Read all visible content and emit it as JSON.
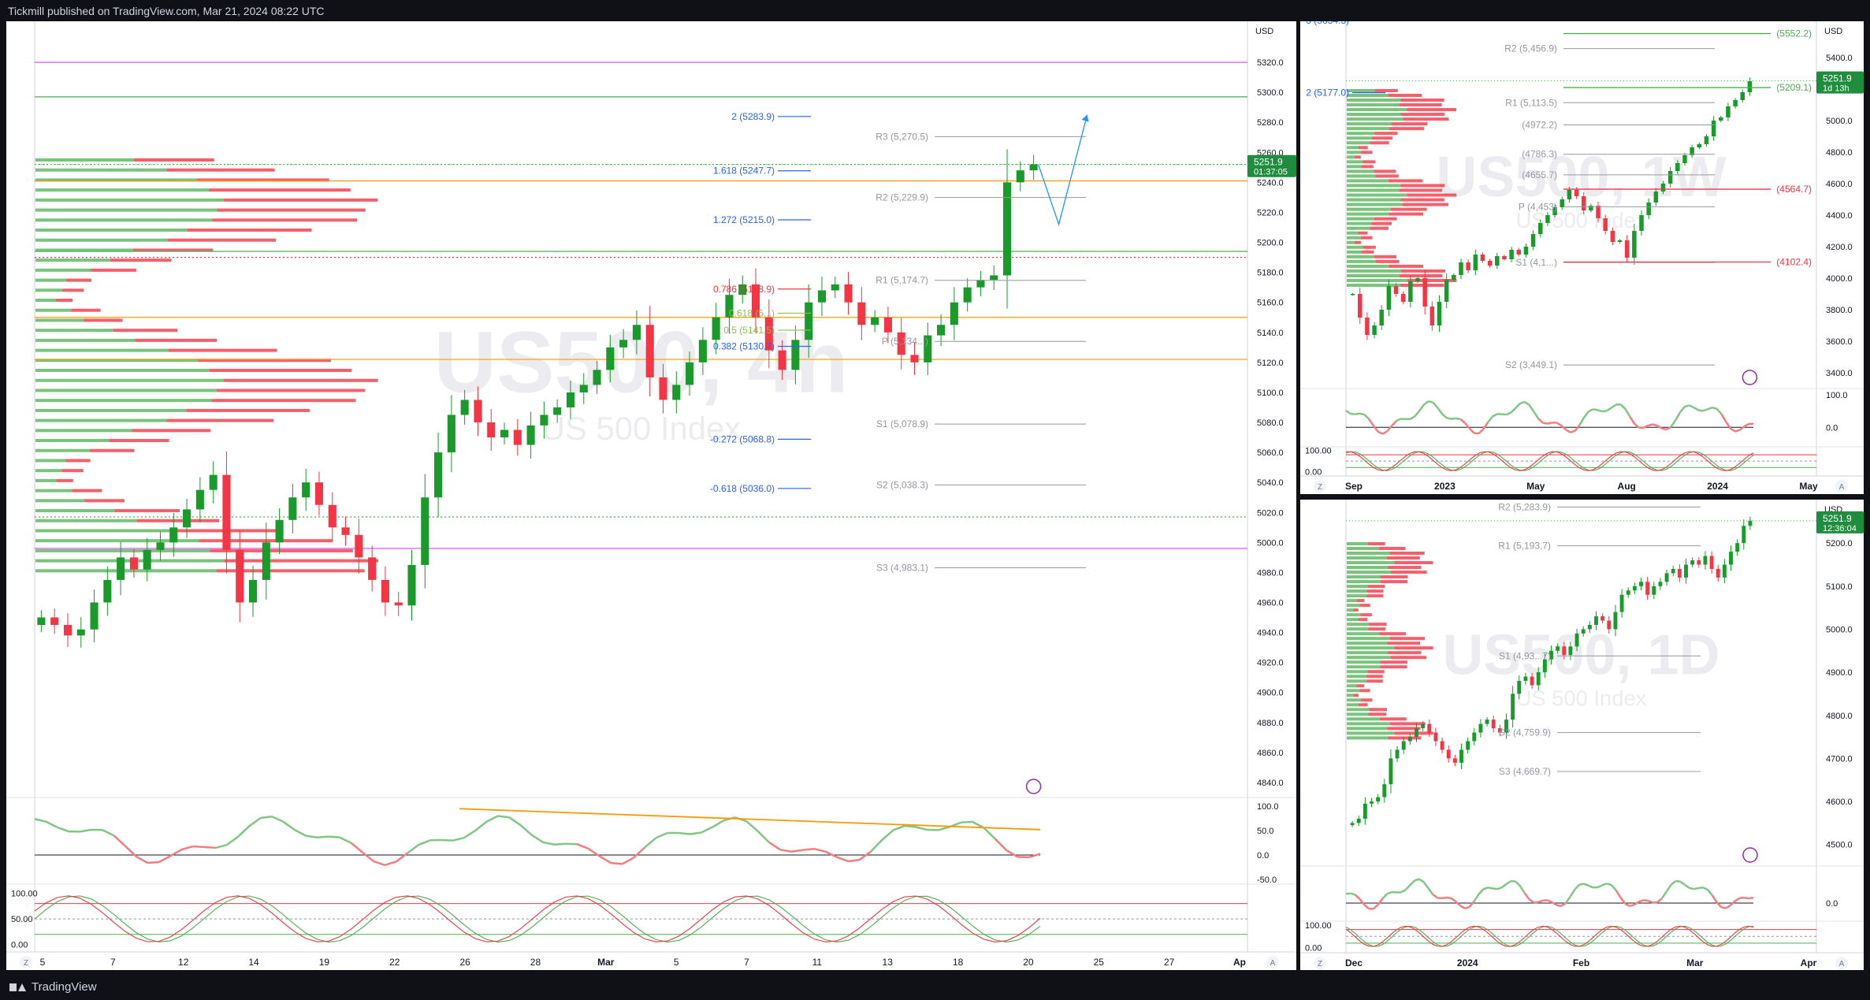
{
  "header": {
    "published": "Tickmill published on TradingView.com, Mar 21, 2024 08:22 UTC"
  },
  "footer": {
    "brand": "TradingView"
  },
  "colors": {
    "up": "#089981",
    "upBar": "#1a9a2a",
    "down": "#f23645",
    "fib": "#2962ff",
    "pivot": "#9598a1",
    "orange": "#ff9800",
    "magenta": "#e040fb",
    "green": "#4caf50",
    "red": "#f23645",
    "priceTag": "#1e8e3e"
  },
  "chart_data": [
    {
      "id": "main",
      "type": "line",
      "title": "",
      "watermark": {
        "symbol": "US500, 4h",
        "description": "US 500 Index"
      },
      "currency": "USD",
      "ylim": [
        4830,
        5340
      ],
      "y_ticks": [
        "5320.0",
        "5300.0",
        "5280.0",
        "5260.0",
        "5240.0",
        "5220.0",
        "5200.0",
        "5180.0",
        "5160.0",
        "5140.0",
        "5120.0",
        "5100.0",
        "5080.0",
        "5060.0",
        "5040.0",
        "5020.0",
        "5000.0",
        "4980.0",
        "4960.0",
        "4940.0",
        "4920.0",
        "4900.0",
        "4880.0",
        "4860.0",
        "4840.0"
      ],
      "x_ticks": [
        "5",
        "7",
        "12",
        "14",
        "19",
        "22",
        "26",
        "28",
        "Mar",
        "5",
        "7",
        "11",
        "13",
        "18",
        "20",
        "25",
        "27",
        "Ap"
      ],
      "last_price": "5251.9",
      "countdown": "01:37:05",
      "close_series": [
        4950,
        4945,
        4938,
        4942,
        4960,
        4975,
        4990,
        4982,
        4995,
        5000,
        5010,
        5022,
        5035,
        5045,
        4995,
        4960,
        4975,
        5000,
        5015,
        5030,
        5040,
        5025,
        5010,
        5005,
        4990,
        4975,
        4960,
        4958,
        4985,
        5030,
        5060,
        5085,
        5095,
        5080,
        5070,
        5075,
        5065,
        5078,
        5085,
        5090,
        5100,
        5105,
        5115,
        5130,
        5135,
        5145,
        5110,
        5095,
        5105,
        5120,
        5135,
        5150,
        5165,
        5172,
        5150,
        5128,
        5115,
        5135,
        5160,
        5168,
        5172,
        5160,
        5145,
        5150,
        5140,
        5125,
        5120,
        5138,
        5145,
        5160,
        5170,
        5175,
        5178,
        5240,
        5248,
        5252
      ],
      "fib_levels": [
        {
          "label": "2 (5283.9)",
          "value": 5283.9
        },
        {
          "label": "1.618 (5247.7)",
          "value": 5247.7
        },
        {
          "label": "1.272 (5215.0)",
          "value": 5215.0
        },
        {
          "label": "0.786 (5168.9)",
          "value": 5168.9
        },
        {
          "label": "0.618 (5...)",
          "value": 5152.8
        },
        {
          "label": "0.5 (5141.5)",
          "value": 5141.5
        },
        {
          "label": "0.382 (5130.7)",
          "value": 5130.7
        },
        {
          "label": "-0.272 (5068.8)",
          "value": 5068.8
        },
        {
          "label": "-0.618 (5036.0)",
          "value": 5036.0
        }
      ],
      "pivots": [
        {
          "label": "R3 (5,270.5)",
          "value": 5270.5
        },
        {
          "label": "R2 (5,229.9)",
          "value": 5229.9
        },
        {
          "label": "R1 (5,174.7)",
          "value": 5174.7
        },
        {
          "label": "P (5,134...)",
          "value": 5134.0
        },
        {
          "label": "S1 (5,078.9)",
          "value": 5078.9
        },
        {
          "label": "S2 (5,038.3)",
          "value": 5038.3
        },
        {
          "label": "S3 (4,983.1)",
          "value": 4983.1
        }
      ],
      "h_lines": [
        {
          "value": 5320,
          "color": "magenta",
          "dash": false
        },
        {
          "value": 5297,
          "color": "green",
          "dash": false
        },
        {
          "value": 5241,
          "color": "orange",
          "dash": false
        },
        {
          "value": 5252,
          "color": "green",
          "dash": true
        },
        {
          "value": 5194,
          "color": "green",
          "dash": false
        },
        {
          "value": 5190,
          "color": "red",
          "dash": true
        },
        {
          "value": 5150,
          "color": "orange",
          "dash": false
        },
        {
          "value": 5122,
          "color": "orange",
          "dash": false
        },
        {
          "value": 5017,
          "color": "green",
          "dash": true
        },
        {
          "value": 4996,
          "color": "magenta",
          "dash": false
        }
      ],
      "projection": [
        5252,
        5212,
        5285
      ],
      "osc1": {
        "ylim": [
          -60,
          110
        ],
        "ticks": [
          "100.0",
          "50.0",
          "0.0",
          "-50.0"
        ]
      },
      "osc2": {
        "ylim": [
          -5,
          110
        ],
        "ticks": [
          "100.00",
          "50.00",
          "0.00"
        ]
      }
    },
    {
      "id": "weekly",
      "type": "line",
      "title": "",
      "watermark": {
        "symbol": "US500, 1W",
        "description": "US 500 Index"
      },
      "currency": "USD",
      "ylim": [
        3300,
        5600
      ],
      "y_ticks": [
        "5400.0",
        "5200.0",
        "5000.0",
        "4800.0",
        "4600.0",
        "4400.0",
        "4200.0",
        "4000.0",
        "3800.0",
        "3600.0",
        "3400.0"
      ],
      "x_ticks": [
        "Sep",
        "2023",
        "May",
        "Aug",
        "2024",
        "May"
      ],
      "last_price": "5251.9",
      "countdown": "1d 13h",
      "close_series": [
        3900,
        3750,
        3640,
        3700,
        3800,
        3950,
        3900,
        3850,
        3980,
        4000,
        3820,
        3700,
        3850,
        3990,
        4020,
        4100,
        4050,
        4150,
        4110,
        4080,
        4140,
        4120,
        4180,
        4150,
        4200,
        4280,
        4350,
        4400,
        4450,
        4500,
        4560,
        4520,
        4430,
        4460,
        4380,
        4300,
        4230,
        4240,
        4130,
        4300,
        4400,
        4480,
        4550,
        4600,
        4680,
        4730,
        4780,
        4830,
        4850,
        4900,
        5000,
        5020,
        5090,
        5130,
        5180,
        5250
      ],
      "fib_levels": [
        {
          "label": "3 (5634.3)",
          "value": 5634.3
        },
        {
          "label": "2 (5177.0)",
          "value": 5177.0
        }
      ],
      "pivots": [
        {
          "label": "R2 (5,456.9)",
          "value": 5456.9
        },
        {
          "label": "R1 (5,113.5)",
          "value": 5113.5
        },
        {
          "label": "(4972.2)",
          "value": 4972.2
        },
        {
          "label": "(4786.3)",
          "value": 4786.3
        },
        {
          "label": "(4655.7)",
          "value": 4655.7
        },
        {
          "label": "P (4,453)",
          "value": 4453
        },
        {
          "label": "S1 (4,1...)",
          "value": 4100
        },
        {
          "label": "S2 (3,449.1)",
          "value": 3449.1
        }
      ],
      "side_labels": [
        {
          "label": "(5552.2)",
          "value": 5552.2,
          "color": "green"
        },
        {
          "label": "(5209.1)",
          "value": 5209.1,
          "color": "green"
        },
        {
          "label": "(4102.4)",
          "value": 4102.4,
          "color": "red"
        },
        {
          "label": "(4564.7)",
          "value": 4564.7,
          "color": "red"
        }
      ],
      "osc1": {
        "ticks": [
          "100.0",
          "0.0"
        ]
      },
      "osc2": {
        "ticks": [
          "100.00",
          "0.00"
        ]
      }
    },
    {
      "id": "daily",
      "type": "line",
      "title": "",
      "watermark": {
        "symbol": "US500, 1D",
        "description": "US 500 Index"
      },
      "currency": "USD",
      "ylim": [
        4450,
        5290
      ],
      "y_ticks": [
        "5200.0",
        "5100.0",
        "5000.0",
        "4900.0",
        "4800.0",
        "4700.0",
        "4600.0",
        "4500.0"
      ],
      "x_ticks": [
        "Dec",
        "2024",
        "Feb",
        "Mar",
        "Apr"
      ],
      "last_price": "5251.9",
      "countdown": "12:36:04",
      "close_series": [
        4550,
        4560,
        4595,
        4600,
        4610,
        4640,
        4700,
        4720,
        4740,
        4750,
        4770,
        4780,
        4760,
        4740,
        4720,
        4700,
        4690,
        4720,
        4740,
        4760,
        4780,
        4790,
        4770,
        4760,
        4790,
        4850,
        4880,
        4890,
        4870,
        4900,
        4930,
        4950,
        4960,
        4940,
        4960,
        4990,
        5000,
        5010,
        5030,
        5020,
        5000,
        5040,
        5080,
        5090,
        5100,
        5110,
        5080,
        5100,
        5110,
        5130,
        5140,
        5120,
        5150,
        5160,
        5150,
        5170,
        5140,
        5120,
        5150,
        5180,
        5200,
        5240,
        5252
      ],
      "pivots": [
        {
          "label": "R2 (5,283.9)",
          "value": 5283.9
        },
        {
          "label": "R1 (5,193.7)",
          "value": 5193.7
        },
        {
          "label": "S1 (4,93...7)",
          "value": 4938
        },
        {
          "label": "S2 (4,759.9)",
          "value": 4759.9
        },
        {
          "label": "S3 (4,669.7)",
          "value": 4669.7
        }
      ],
      "osc1": {
        "ticks": [
          "0.0"
        ]
      },
      "osc2": {
        "ticks": [
          "100.00",
          "0.00"
        ]
      }
    }
  ]
}
